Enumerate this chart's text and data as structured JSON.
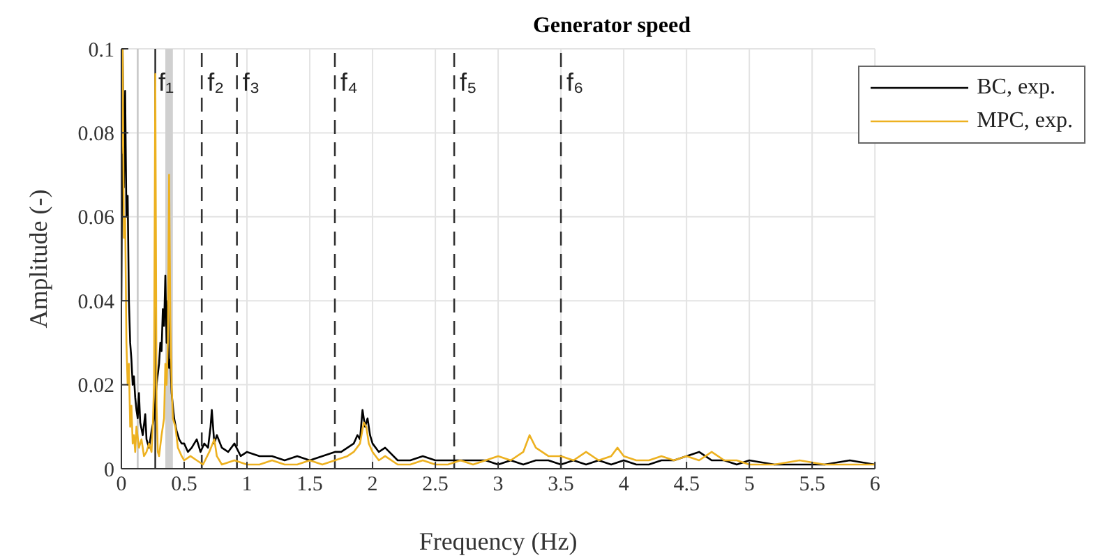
{
  "chart_data": {
    "type": "line",
    "title": "Generator speed",
    "xlabel": "Frequency (Hz)",
    "ylabel": "Amplitude (-)",
    "xlim": [
      0,
      6
    ],
    "ylim": [
      0,
      0.1
    ],
    "xticks": [
      0,
      0.5,
      1,
      1.5,
      2,
      2.5,
      3,
      3.5,
      4,
      4.5,
      5,
      5.5,
      6
    ],
    "yticks": [
      0,
      0.02,
      0.04,
      0.06,
      0.08,
      0.1
    ],
    "grid": true,
    "legend": "top right",
    "line_style": "solid",
    "marker": "none",
    "series": [
      {
        "name": "BC, exp.",
        "color": "#000000",
        "x": [
          0,
          0.01,
          0.02,
          0.03,
          0.04,
          0.05,
          0.06,
          0.07,
          0.08,
          0.09,
          0.1,
          0.11,
          0.12,
          0.13,
          0.14,
          0.15,
          0.17,
          0.19,
          0.2,
          0.22,
          0.24,
          0.26,
          0.28,
          0.3,
          0.31,
          0.32,
          0.33,
          0.34,
          0.35,
          0.36,
          0.37,
          0.38,
          0.39,
          0.4,
          0.42,
          0.44,
          0.46,
          0.48,
          0.5,
          0.53,
          0.56,
          0.6,
          0.63,
          0.66,
          0.69,
          0.71,
          0.72,
          0.74,
          0.76,
          0.8,
          0.85,
          0.9,
          0.95,
          1,
          1.1,
          1.2,
          1.3,
          1.4,
          1.5,
          1.6,
          1.7,
          1.75,
          1.8,
          1.85,
          1.88,
          1.9,
          1.92,
          1.94,
          1.96,
          1.98,
          2,
          2.05,
          2.1,
          2.2,
          2.3,
          2.4,
          2.5,
          2.6,
          2.7,
          2.8,
          2.9,
          3,
          3.1,
          3.2,
          3.3,
          3.4,
          3.5,
          3.6,
          3.7,
          3.8,
          3.9,
          4,
          4.1,
          4.2,
          4.3,
          4.4,
          4.5,
          4.6,
          4.65,
          4.7,
          4.8,
          4.9,
          5,
          5.2,
          5.4,
          5.6,
          5.8,
          6
        ],
        "values": [
          0.04,
          0.1,
          0.067,
          0.09,
          0.06,
          0.065,
          0.04,
          0.03,
          0.026,
          0.02,
          0.022,
          0.017,
          0.014,
          0.012,
          0.018,
          0.011,
          0.008,
          0.013,
          0.007,
          0.005,
          0.009,
          0.012,
          0.02,
          0.025,
          0.03,
          0.028,
          0.038,
          0.034,
          0.046,
          0.03,
          0.04,
          0.024,
          0.026,
          0.018,
          0.012,
          0.009,
          0.007,
          0.006,
          0.006,
          0.004,
          0.005,
          0.007,
          0.004,
          0.006,
          0.005,
          0.01,
          0.014,
          0.006,
          0.008,
          0.005,
          0.004,
          0.006,
          0.003,
          0.004,
          0.003,
          0.003,
          0.002,
          0.003,
          0.002,
          0.003,
          0.004,
          0.004,
          0.005,
          0.006,
          0.008,
          0.007,
          0.014,
          0.01,
          0.012,
          0.008,
          0.006,
          0.004,
          0.005,
          0.002,
          0.002,
          0.003,
          0.002,
          0.002,
          0.002,
          0.002,
          0.002,
          0.001,
          0.002,
          0.001,
          0.002,
          0.002,
          0.001,
          0.002,
          0.001,
          0.002,
          0.001,
          0.002,
          0.001,
          0.001,
          0.002,
          0.002,
          0.003,
          0.004,
          0.003,
          0.002,
          0.002,
          0.001,
          0.002,
          0.001,
          0.001,
          0.001,
          0.002,
          0.001
        ]
      },
      {
        "name": "MPC, exp.",
        "color": "#edb120",
        "x": [
          0,
          0.01,
          0.02,
          0.03,
          0.04,
          0.05,
          0.06,
          0.07,
          0.08,
          0.09,
          0.1,
          0.11,
          0.12,
          0.14,
          0.16,
          0.18,
          0.2,
          0.22,
          0.24,
          0.25,
          0.26,
          0.27,
          0.28,
          0.29,
          0.3,
          0.32,
          0.34,
          0.35,
          0.36,
          0.37,
          0.38,
          0.39,
          0.4,
          0.41,
          0.43,
          0.45,
          0.48,
          0.5,
          0.55,
          0.6,
          0.65,
          0.7,
          0.74,
          0.76,
          0.8,
          0.9,
          1,
          1.1,
          1.2,
          1.3,
          1.4,
          1.5,
          1.6,
          1.7,
          1.8,
          1.85,
          1.9,
          1.93,
          1.95,
          1.97,
          2,
          2.05,
          2.1,
          2.2,
          2.3,
          2.4,
          2.5,
          2.6,
          2.7,
          2.8,
          2.9,
          3,
          3.1,
          3.2,
          3.25,
          3.3,
          3.35,
          3.4,
          3.5,
          3.6,
          3.7,
          3.8,
          3.9,
          3.95,
          4,
          4.1,
          4.2,
          4.3,
          4.4,
          4.5,
          4.6,
          4.7,
          4.75,
          4.8,
          4.9,
          5,
          5.2,
          5.4,
          5.6,
          5.8,
          6
        ],
        "values": [
          0.075,
          0.1,
          0.055,
          0.06,
          0.03,
          0.02,
          0.025,
          0.01,
          0.015,
          0.006,
          0.008,
          0.004,
          0.01,
          0.005,
          0.007,
          0.003,
          0.004,
          0.006,
          0.004,
          0.01,
          0.02,
          0.094,
          0.015,
          0.004,
          0.003,
          0.008,
          0.012,
          0.025,
          0.02,
          0.03,
          0.07,
          0.035,
          0.02,
          0.012,
          0.01,
          0.005,
          0.003,
          0.002,
          0.003,
          0.002,
          0.001,
          0.004,
          0.007,
          0.003,
          0.001,
          0.002,
          0.001,
          0.001,
          0.002,
          0.001,
          0.001,
          0.002,
          0.001,
          0.002,
          0.003,
          0.004,
          0.006,
          0.011,
          0.01,
          0.006,
          0.004,
          0.002,
          0.003,
          0.001,
          0.001,
          0.002,
          0.001,
          0.001,
          0.002,
          0.001,
          0.002,
          0.003,
          0.002,
          0.004,
          0.008,
          0.005,
          0.004,
          0.003,
          0.003,
          0.002,
          0.004,
          0.002,
          0.003,
          0.005,
          0.003,
          0.002,
          0.002,
          0.003,
          0.002,
          0.003,
          0.002,
          0.004,
          0.003,
          0.002,
          0.002,
          0.001,
          0.001,
          0.002,
          0.001,
          0.001,
          0.001
        ]
      }
    ],
    "ref_lines": [
      {
        "axis": "x",
        "value": 0.13,
        "color": "#c8c8c8",
        "line_style": "solid"
      },
      {
        "axis": "x",
        "value": 0.27,
        "color": "#333333",
        "line_style": "solid"
      },
      {
        "axis": "x",
        "value": 0.64,
        "label": "f₂",
        "color": "#333333",
        "line_style": "dashed"
      },
      {
        "axis": "x",
        "value": 0.92,
        "label": "f₃",
        "color": "#333333",
        "line_style": "dashed"
      },
      {
        "axis": "x",
        "value": 1.7,
        "label": "f₄",
        "color": "#333333",
        "line_style": "dashed"
      },
      {
        "axis": "x",
        "value": 2.65,
        "label": "f₅",
        "color": "#333333",
        "line_style": "dashed"
      },
      {
        "axis": "x",
        "value": 3.5,
        "label": "f₆",
        "color": "#333333",
        "line_style": "dashed"
      }
    ],
    "bands": [
      {
        "axis": "x",
        "from": 0.35,
        "to": 0.41,
        "label": "f₁",
        "color": "#d0d0d0"
      }
    ]
  }
}
